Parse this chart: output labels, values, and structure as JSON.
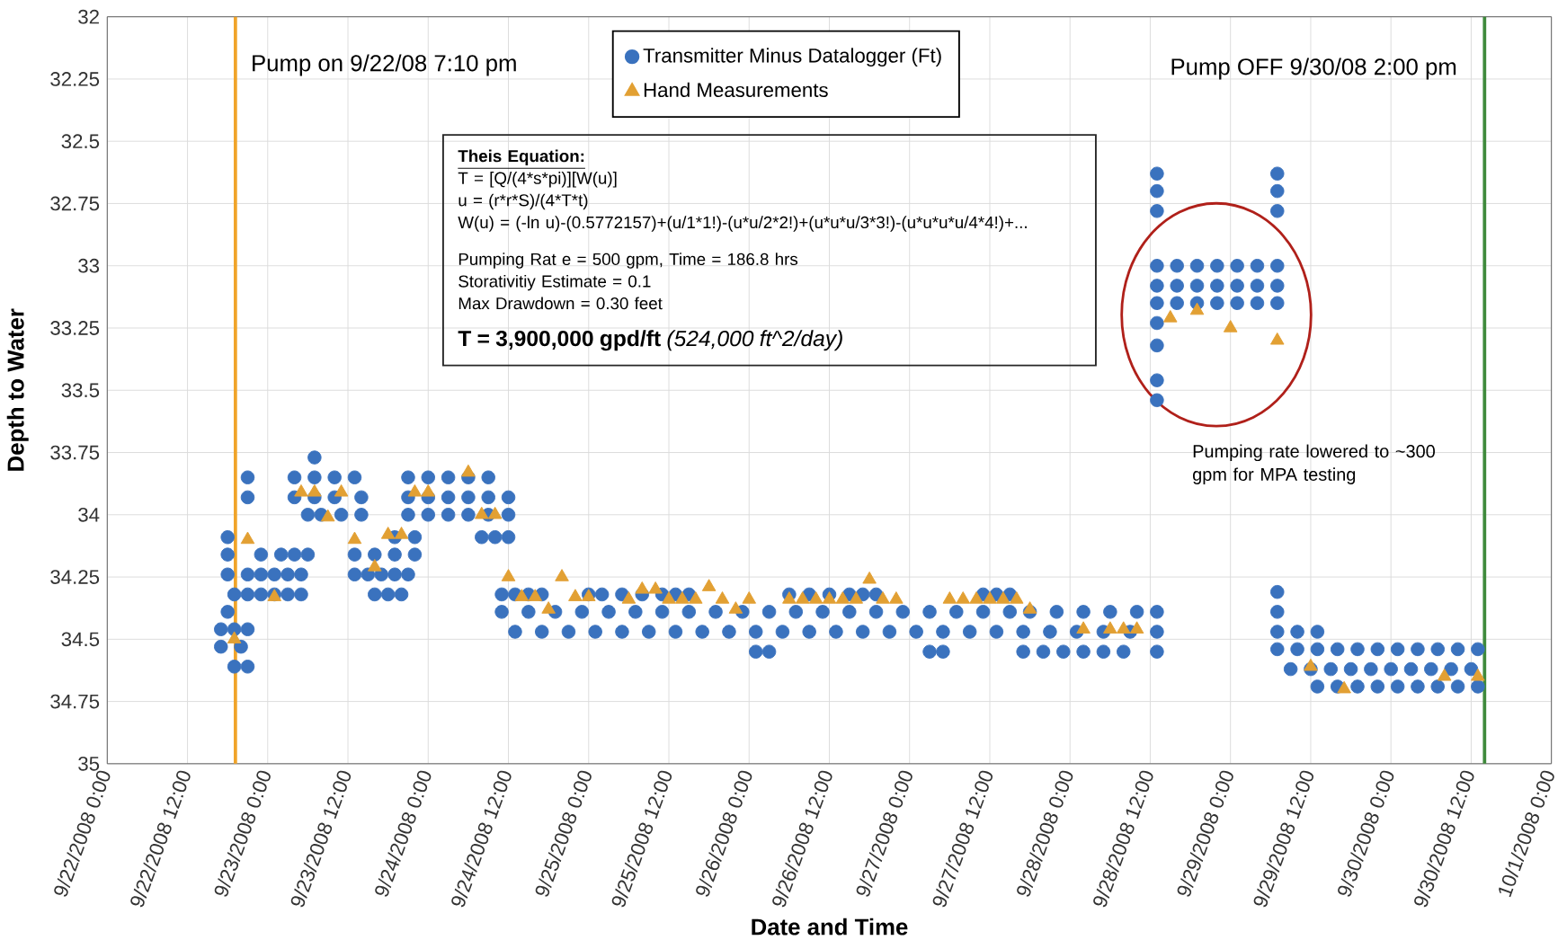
{
  "chart_data": {
    "type": "scatter",
    "xlabel": "Date and Time",
    "ylabel": "Depth to Water",
    "xlim": [
      "2008-09-22T00:00",
      "2008-10-01T00:00"
    ],
    "ylim": [
      35,
      32
    ],
    "xticks": [
      {
        "value": "2008-09-22T00:00",
        "label": "9/22/2008 0:00"
      },
      {
        "value": "2008-09-22T12:00",
        "label": "9/22/2008 12:00"
      },
      {
        "value": "2008-09-23T00:00",
        "label": "9/23/2008 0:00"
      },
      {
        "value": "2008-09-23T12:00",
        "label": "9/23/2008 12:00"
      },
      {
        "value": "2008-09-24T00:00",
        "label": "9/24/2008 0:00"
      },
      {
        "value": "2008-09-24T12:00",
        "label": "9/24/2008 12:00"
      },
      {
        "value": "2008-09-25T00:00",
        "label": "9/25/2008 0:00"
      },
      {
        "value": "2008-09-25T12:00",
        "label": "9/25/2008 12:00"
      },
      {
        "value": "2008-09-26T00:00",
        "label": "9/26/2008 0:00"
      },
      {
        "value": "2008-09-26T12:00",
        "label": "9/26/2008 12:00"
      },
      {
        "value": "2008-09-27T00:00",
        "label": "9/27/2008 0:00"
      },
      {
        "value": "2008-09-27T12:00",
        "label": "9/27/2008 12:00"
      },
      {
        "value": "2008-09-28T00:00",
        "label": "9/28/2008 0:00"
      },
      {
        "value": "2008-09-28T12:00",
        "label": "9/28/2008 12:00"
      },
      {
        "value": "2008-09-29T00:00",
        "label": "9/29/2008 0:00"
      },
      {
        "value": "2008-09-29T12:00",
        "label": "9/29/2008 12:00"
      },
      {
        "value": "2008-09-30T00:00",
        "label": "9/30/2008 0:00"
      },
      {
        "value": "2008-09-30T12:00",
        "label": "9/30/2008 12:00"
      },
      {
        "value": "2008-10-01T00:00",
        "label": "10/1/2008 0:00"
      }
    ],
    "yticks": [
      32,
      32.25,
      32.5,
      32.75,
      33,
      33.25,
      33.5,
      33.75,
      34,
      34.25,
      34.5,
      34.75,
      35
    ],
    "grid": true,
    "legend": "top",
    "series": [
      {
        "name": "Transmitter Minus Datalogger (Ft)",
        "color": "#3a72be",
        "marker": "circle",
        "x": [
          "2008-09-22T18:00",
          "2008-09-22T18:00",
          "2008-09-22T18:00",
          "2008-09-22T19:00",
          "2008-09-22T18:00",
          "2008-09-22T17:00",
          "2008-09-22T19:00",
          "2008-09-22T21:00",
          "2008-09-22T17:00",
          "2008-09-22T20:00",
          "2008-09-22T19:00",
          "2008-09-22T21:00",
          "2008-09-22T21:00",
          "2008-09-22T21:00",
          "2008-09-22T23:00",
          "2008-09-23T07:00",
          "2008-09-22T21:00",
          "2008-09-22T23:00",
          "2008-09-23T01:00",
          "2008-09-23T03:00",
          "2008-09-23T05:00",
          "2008-09-23T13:00",
          "2008-09-23T15:00",
          "2008-09-23T17:00",
          "2008-09-23T19:00",
          "2008-09-23T21:00",
          "2008-09-22T21:00",
          "2008-09-22T23:00",
          "2008-09-23T01:00",
          "2008-09-23T03:00",
          "2008-09-23T05:00",
          "2008-09-23T16:00",
          "2008-09-23T18:00",
          "2008-09-23T20:00",
          "2008-09-24T11:00",
          "2008-09-24T13:00",
          "2008-09-24T15:00",
          "2008-09-24T17:00",
          "2008-09-25T00:00",
          "2008-09-25T02:00",
          "2008-09-25T05:00",
          "2008-09-25T08:00",
          "2008-09-25T11:00",
          "2008-09-25T13:00",
          "2008-09-25T15:00",
          "2008-09-26T06:00",
          "2008-09-26T09:00",
          "2008-09-26T12:00",
          "2008-09-26T15:00",
          "2008-09-26T17:00",
          "2008-09-26T19:00",
          "2008-09-27T11:00",
          "2008-09-27T13:00",
          "2008-09-27T15:00",
          "2008-09-23T02:00",
          "2008-09-23T04:00",
          "2008-09-23T06:00",
          "2008-09-23T13:00",
          "2008-09-23T16:00",
          "2008-09-23T19:00",
          "2008-09-23T22:00",
          "2008-09-23T04:00",
          "2008-09-23T07:00",
          "2008-09-23T10:00",
          "2008-09-23T13:00",
          "2008-09-23T21:00",
          "2008-09-24T00:00",
          "2008-09-24T03:00",
          "2008-09-24T06:00",
          "2008-09-24T09:00",
          "2008-09-23T04:00",
          "2008-09-23T07:00",
          "2008-09-23T10:00",
          "2008-09-23T14:00",
          "2008-09-23T21:00",
          "2008-09-24T00:00",
          "2008-09-24T03:00",
          "2008-09-24T06:00",
          "2008-09-24T09:00",
          "2008-09-24T12:00",
          "2008-09-23T06:00",
          "2008-09-23T08:00",
          "2008-09-23T11:00",
          "2008-09-23T14:00",
          "2008-09-23T21:00",
          "2008-09-24T00:00",
          "2008-09-24T03:00",
          "2008-09-24T06:00",
          "2008-09-24T09:00",
          "2008-09-24T12:00",
          "2008-09-23T19:00",
          "2008-09-23T22:00",
          "2008-09-24T08:00",
          "2008-09-24T10:00",
          "2008-09-24T12:00",
          "2008-09-24T11:00",
          "2008-09-24T15:00",
          "2008-09-24T19:00",
          "2008-09-24T23:00",
          "2008-09-25T03:00",
          "2008-09-25T07:00",
          "2008-09-25T11:00",
          "2008-09-25T15:00",
          "2008-09-25T19:00",
          "2008-09-25T23:00",
          "2008-09-26T03:00",
          "2008-09-26T07:00",
          "2008-09-26T11:00",
          "2008-09-26T15:00",
          "2008-09-26T19:00",
          "2008-09-26T23:00",
          "2008-09-27T03:00",
          "2008-09-27T07:00",
          "2008-09-27T11:00",
          "2008-09-27T15:00",
          "2008-09-27T18:00",
          "2008-09-27T22:00",
          "2008-09-28T02:00",
          "2008-09-28T06:00",
          "2008-09-28T10:00",
          "2008-09-28T13:00",
          "2008-09-24T13:00",
          "2008-09-24T17:00",
          "2008-09-24T21:00",
          "2008-09-25T01:00",
          "2008-09-25T05:00",
          "2008-09-25T09:00",
          "2008-09-25T13:00",
          "2008-09-25T17:00",
          "2008-09-25T21:00",
          "2008-09-26T01:00",
          "2008-09-26T05:00",
          "2008-09-26T09:00",
          "2008-09-26T13:00",
          "2008-09-26T17:00",
          "2008-09-26T21:00",
          "2008-09-27T01:00",
          "2008-09-27T05:00",
          "2008-09-27T09:00",
          "2008-09-27T13:00",
          "2008-09-27T17:00",
          "2008-09-27T21:00",
          "2008-09-28T01:00",
          "2008-09-28T05:00",
          "2008-09-28T09:00",
          "2008-09-28T13:00",
          "2008-09-26T01:00",
          "2008-09-26T03:00",
          "2008-09-27T03:00",
          "2008-09-27T05:00",
          "2008-09-27T17:00",
          "2008-09-27T20:00",
          "2008-09-27T23:00",
          "2008-09-28T02:00",
          "2008-09-28T05:00",
          "2008-09-28T08:00",
          "2008-09-28T13:00",
          "2008-09-28T13:00",
          "2008-09-28T13:00",
          "2008-09-28T13:00",
          "2008-09-28T13:00",
          "2008-09-28T13:00",
          "2008-09-28T13:00",
          "2008-09-28T13:00",
          "2008-09-28T13:00",
          "2008-09-28T13:00",
          "2008-09-28T13:00",
          "2008-09-29T07:00",
          "2008-09-29T07:00",
          "2008-09-29T07:00",
          "2008-09-28T16:00",
          "2008-09-28T19:00",
          "2008-09-28T22:00",
          "2008-09-29T01:00",
          "2008-09-29T04:00",
          "2008-09-29T07:00",
          "2008-09-28T16:00",
          "2008-09-28T19:00",
          "2008-09-28T22:00",
          "2008-09-29T01:00",
          "2008-09-29T04:00",
          "2008-09-29T07:00",
          "2008-09-28T16:00",
          "2008-09-28T19:00",
          "2008-09-28T22:00",
          "2008-09-29T01:00",
          "2008-09-29T04:00",
          "2008-09-29T07:00",
          "2008-09-29T07:00",
          "2008-09-29T07:00",
          "2008-09-29T07:00",
          "2008-09-29T10:00",
          "2008-09-29T13:00",
          "2008-09-29T07:00",
          "2008-09-29T10:00",
          "2008-09-29T13:00",
          "2008-09-29T16:00",
          "2008-09-29T19:00",
          "2008-09-29T22:00",
          "2008-09-30T01:00",
          "2008-09-30T04:00",
          "2008-09-30T07:00",
          "2008-09-30T10:00",
          "2008-09-30T13:00",
          "2008-09-29T09:00",
          "2008-09-29T12:00",
          "2008-09-29T15:00",
          "2008-09-29T18:00",
          "2008-09-29T21:00",
          "2008-09-30T00:00",
          "2008-09-30T03:00",
          "2008-09-30T06:00",
          "2008-09-30T09:00",
          "2008-09-30T12:00",
          "2008-09-29T13:00",
          "2008-09-29T16:00",
          "2008-09-29T19:00",
          "2008-09-29T22:00",
          "2008-09-30T01:00",
          "2008-09-30T04:00",
          "2008-09-30T07:00",
          "2008-09-30T10:00",
          "2008-09-30T13:00"
        ],
        "values": [
          34.09,
          34.16,
          34.24,
          34.32,
          34.39,
          34.46,
          34.46,
          34.46,
          34.53,
          34.53,
          34.61,
          34.61,
          33.85,
          33.93,
          34.16,
          33.77,
          34.24,
          34.24,
          34.24,
          34.24,
          34.24,
          34.24,
          34.24,
          34.24,
          34.24,
          34.24,
          34.32,
          34.32,
          34.32,
          34.32,
          34.32,
          34.32,
          34.32,
          34.32,
          34.32,
          34.32,
          34.32,
          34.32,
          34.32,
          34.32,
          34.32,
          34.32,
          34.32,
          34.32,
          34.32,
          34.32,
          34.32,
          34.32,
          34.32,
          34.32,
          34.32,
          34.32,
          34.32,
          34.32,
          34.16,
          34.16,
          34.16,
          34.16,
          34.16,
          34.16,
          34.16,
          33.85,
          33.85,
          33.85,
          33.85,
          33.85,
          33.85,
          33.85,
          33.85,
          33.85,
          33.93,
          33.93,
          33.93,
          33.93,
          33.93,
          33.93,
          33.93,
          33.93,
          33.93,
          33.93,
          34.0,
          34.0,
          34.0,
          34.0,
          34.0,
          34.0,
          34.0,
          34.0,
          34.0,
          34.0,
          34.09,
          34.09,
          34.09,
          34.09,
          34.09,
          34.39,
          34.39,
          34.39,
          34.39,
          34.39,
          34.39,
          34.39,
          34.39,
          34.39,
          34.39,
          34.39,
          34.39,
          34.39,
          34.39,
          34.39,
          34.39,
          34.39,
          34.39,
          34.39,
          34.39,
          34.39,
          34.39,
          34.39,
          34.39,
          34.39,
          34.39,
          34.47,
          34.47,
          34.47,
          34.47,
          34.47,
          34.47,
          34.47,
          34.47,
          34.47,
          34.47,
          34.47,
          34.47,
          34.47,
          34.47,
          34.47,
          34.47,
          34.47,
          34.47,
          34.47,
          34.47,
          34.47,
          34.47,
          34.47,
          34.47,
          34.47,
          34.55,
          34.55,
          34.55,
          34.55,
          34.55,
          34.55,
          34.55,
          34.55,
          34.55,
          34.55,
          34.55,
          32.63,
          32.7,
          32.78,
          33.0,
          33.08,
          33.15,
          33.23,
          33.32,
          33.46,
          33.54,
          32.63,
          32.7,
          32.78,
          33.0,
          33.0,
          33.0,
          33.0,
          33.0,
          33.0,
          33.08,
          33.08,
          33.08,
          33.08,
          33.08,
          33.08,
          33.15,
          33.15,
          33.15,
          33.15,
          33.15,
          33.15,
          34.31,
          34.39,
          34.47,
          34.47,
          34.47,
          34.54,
          34.54,
          34.54,
          34.54,
          34.54,
          34.54,
          34.54,
          34.54,
          34.54,
          34.54,
          34.54,
          34.62,
          34.62,
          34.62,
          34.62,
          34.62,
          34.62,
          34.62,
          34.62,
          34.62,
          34.62,
          34.69,
          34.69,
          34.69,
          34.69,
          34.69,
          34.69,
          34.69,
          34.69,
          34.69
        ]
      },
      {
        "name": "Hand Measurements",
        "color": "#e2a033",
        "marker": "triangle",
        "x": [
          "2008-09-22T19:00",
          "2008-09-22T21:00",
          "2008-09-23T01:00",
          "2008-09-23T05:00",
          "2008-09-23T07:00",
          "2008-09-23T09:00",
          "2008-09-23T11:00",
          "2008-09-23T13:00",
          "2008-09-23T16:00",
          "2008-09-23T18:00",
          "2008-09-23T20:00",
          "2008-09-23T22:00",
          "2008-09-24T00:00",
          "2008-09-24T06:00",
          "2008-09-24T08:00",
          "2008-09-24T10:00",
          "2008-09-24T12:00",
          "2008-09-24T14:00",
          "2008-09-24T16:00",
          "2008-09-24T18:00",
          "2008-09-24T20:00",
          "2008-09-24T22:00",
          "2008-09-25T00:00",
          "2008-09-25T06:00",
          "2008-09-25T08:00",
          "2008-09-25T10:00",
          "2008-09-25T12:00",
          "2008-09-25T14:00",
          "2008-09-25T16:00",
          "2008-09-25T18:00",
          "2008-09-25T20:00",
          "2008-09-25T22:00",
          "2008-09-26T00:00",
          "2008-09-26T06:00",
          "2008-09-26T08:00",
          "2008-09-26T10:00",
          "2008-09-26T12:00",
          "2008-09-26T14:00",
          "2008-09-26T16:00",
          "2008-09-26T18:00",
          "2008-09-26T20:00",
          "2008-09-26T22:00",
          "2008-09-27T06:00",
          "2008-09-27T08:00",
          "2008-09-27T10:00",
          "2008-09-27T12:00",
          "2008-09-27T14:00",
          "2008-09-27T16:00",
          "2008-09-27T18:00",
          "2008-09-28T02:00",
          "2008-09-28T06:00",
          "2008-09-28T08:00",
          "2008-09-28T10:00",
          "2008-09-28T15:00",
          "2008-09-28T19:00",
          "2008-09-29T00:00",
          "2008-09-29T07:00",
          "2008-09-29T12:00",
          "2008-09-29T17:00",
          "2008-09-30T08:00",
          "2008-09-30T13:00"
        ],
        "values": [
          34.5,
          34.1,
          34.33,
          33.91,
          33.91,
          34.01,
          33.91,
          34.1,
          34.21,
          34.08,
          34.08,
          33.91,
          33.91,
          33.83,
          34.0,
          34.0,
          34.25,
          34.33,
          34.33,
          34.38,
          34.25,
          34.33,
          34.33,
          34.34,
          34.3,
          34.3,
          34.34,
          34.34,
          34.34,
          34.29,
          34.34,
          34.38,
          34.34,
          34.34,
          34.34,
          34.34,
          34.34,
          34.34,
          34.34,
          34.26,
          34.34,
          34.34,
          34.34,
          34.34,
          34.34,
          34.34,
          34.34,
          34.34,
          34.38,
          34.46,
          34.46,
          34.46,
          34.46,
          33.21,
          33.18,
          33.25,
          33.3,
          34.61,
          34.7,
          34.65,
          34.65
        ]
      }
    ],
    "ref_lines": [
      {
        "axis": "x",
        "value": "2008-09-22T19:10",
        "label": "Pump on 9/22/08 7:10 pm",
        "color": "#f0a42a"
      },
      {
        "axis": "x",
        "value": "2008-09-30T14:00",
        "label": "Pump OFF 9/30/08 2:00 pm",
        "color": "#3f8a3c"
      }
    ],
    "annotations": [
      "Theis Equation:",
      "T = [Q/(4*s*pi)][W(u)]",
      "u = (r*r*S)/(4*T*t)",
      "W(u) = (-ln u)-(0.5772157)+(u/1*1!)-(u*u/2*2!)+(u*u*u/3*3!)-(u*u*u*u/4*4!)+...",
      "Pumping Rat e = 500  gpm,  Time  = 186.8 hrs",
      "Storativitiy Estimate  = 0.1",
      "Max Drawdown = 0.30 feet",
      "**T  =  3,900,000   gpd/ft**  *(524,000 ft^2/day)*",
      "Pumping rate lowered to ~300 gpm for MPA testing"
    ]
  }
}
